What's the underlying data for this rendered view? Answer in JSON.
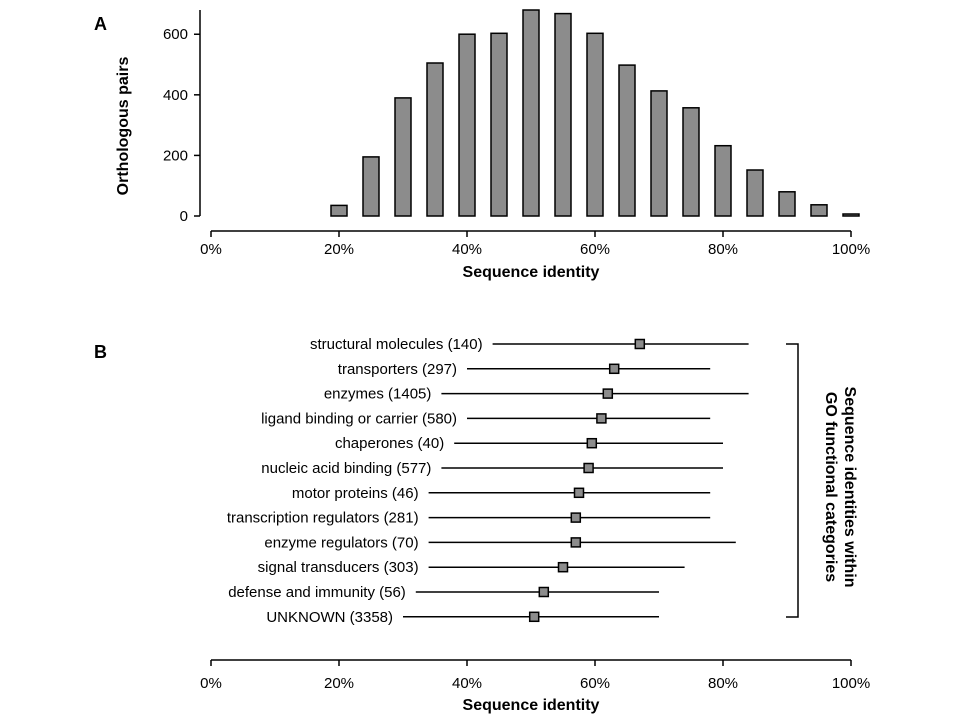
{
  "colors": {
    "bar_fill": "#8c8c8c",
    "marker_fill": "#8c8c8c",
    "stroke": "#000000"
  },
  "chart_data": [
    {
      "panel": "A",
      "type": "bar",
      "categories": [
        "0%",
        "5%",
        "10%",
        "15%",
        "20%",
        "25%",
        "30%",
        "35%",
        "40%",
        "45%",
        "50%",
        "55%",
        "60%",
        "65%",
        "70%",
        "75%",
        "80%",
        "85%",
        "90%",
        "95%",
        "100%"
      ],
      "x": [
        0,
        5,
        10,
        15,
        20,
        25,
        30,
        35,
        40,
        45,
        50,
        55,
        60,
        65,
        70,
        75,
        80,
        85,
        90,
        95,
        100
      ],
      "values": [
        0,
        0,
        0,
        0,
        35,
        195,
        390,
        505,
        600,
        603,
        680,
        668,
        603,
        498,
        413,
        357,
        232,
        152,
        80,
        37,
        3
      ],
      "xlabel": "Sequence identity",
      "ylabel": "Orthologous pairs",
      "xlim": [
        0,
        100
      ],
      "ylim": [
        0,
        680
      ],
      "y_ticks": [
        0,
        200,
        400,
        600
      ],
      "y_tick_labels": [
        "0",
        "200",
        "400",
        "600"
      ],
      "x_ticks": [
        0,
        20,
        40,
        60,
        80,
        100
      ],
      "x_tick_labels": [
        "0%",
        "20%",
        "40%",
        "60%",
        "80%",
        "100%"
      ],
      "grid": false
    },
    {
      "panel": "B",
      "type": "scatter",
      "series": [
        {
          "label": "structural molecules (140)",
          "value": 67,
          "low": 44,
          "high": 84
        },
        {
          "label": "transporters (297)",
          "value": 63,
          "low": 40,
          "high": 78
        },
        {
          "label": "enzymes (1405)",
          "value": 62,
          "low": 36,
          "high": 84
        },
        {
          "label": "ligand binding or carrier (580)",
          "value": 61,
          "low": 40,
          "high": 78
        },
        {
          "label": "chaperones (40)",
          "value": 59.5,
          "low": 38,
          "high": 80
        },
        {
          "label": "nucleic acid binding (577)",
          "value": 59,
          "low": 36,
          "high": 80
        },
        {
          "label": "motor proteins (46)",
          "value": 57.5,
          "low": 34,
          "high": 78
        },
        {
          "label": "transcription regulators (281)",
          "value": 57,
          "low": 34,
          "high": 78
        },
        {
          "label": "enzyme regulators (70)",
          "value": 57,
          "low": 34,
          "high": 82
        },
        {
          "label": "signal transducers (303)",
          "value": 55,
          "low": 34,
          "high": 74
        },
        {
          "label": "defense and immunity (56)",
          "value": 52,
          "low": 32,
          "high": 70
        },
        {
          "label": "UNKNOWN (3358)",
          "value": 50.5,
          "low": 30,
          "high": 70
        }
      ],
      "xlabel": "Sequence identity",
      "xlim": [
        0,
        100
      ],
      "x_ticks": [
        0,
        20,
        40,
        60,
        80,
        100
      ],
      "x_tick_labels": [
        "0%",
        "20%",
        "40%",
        "60%",
        "80%",
        "100%"
      ],
      "bracket_label_lines": [
        "Sequence identities within",
        "GO functional categories"
      ],
      "grid": false
    }
  ]
}
